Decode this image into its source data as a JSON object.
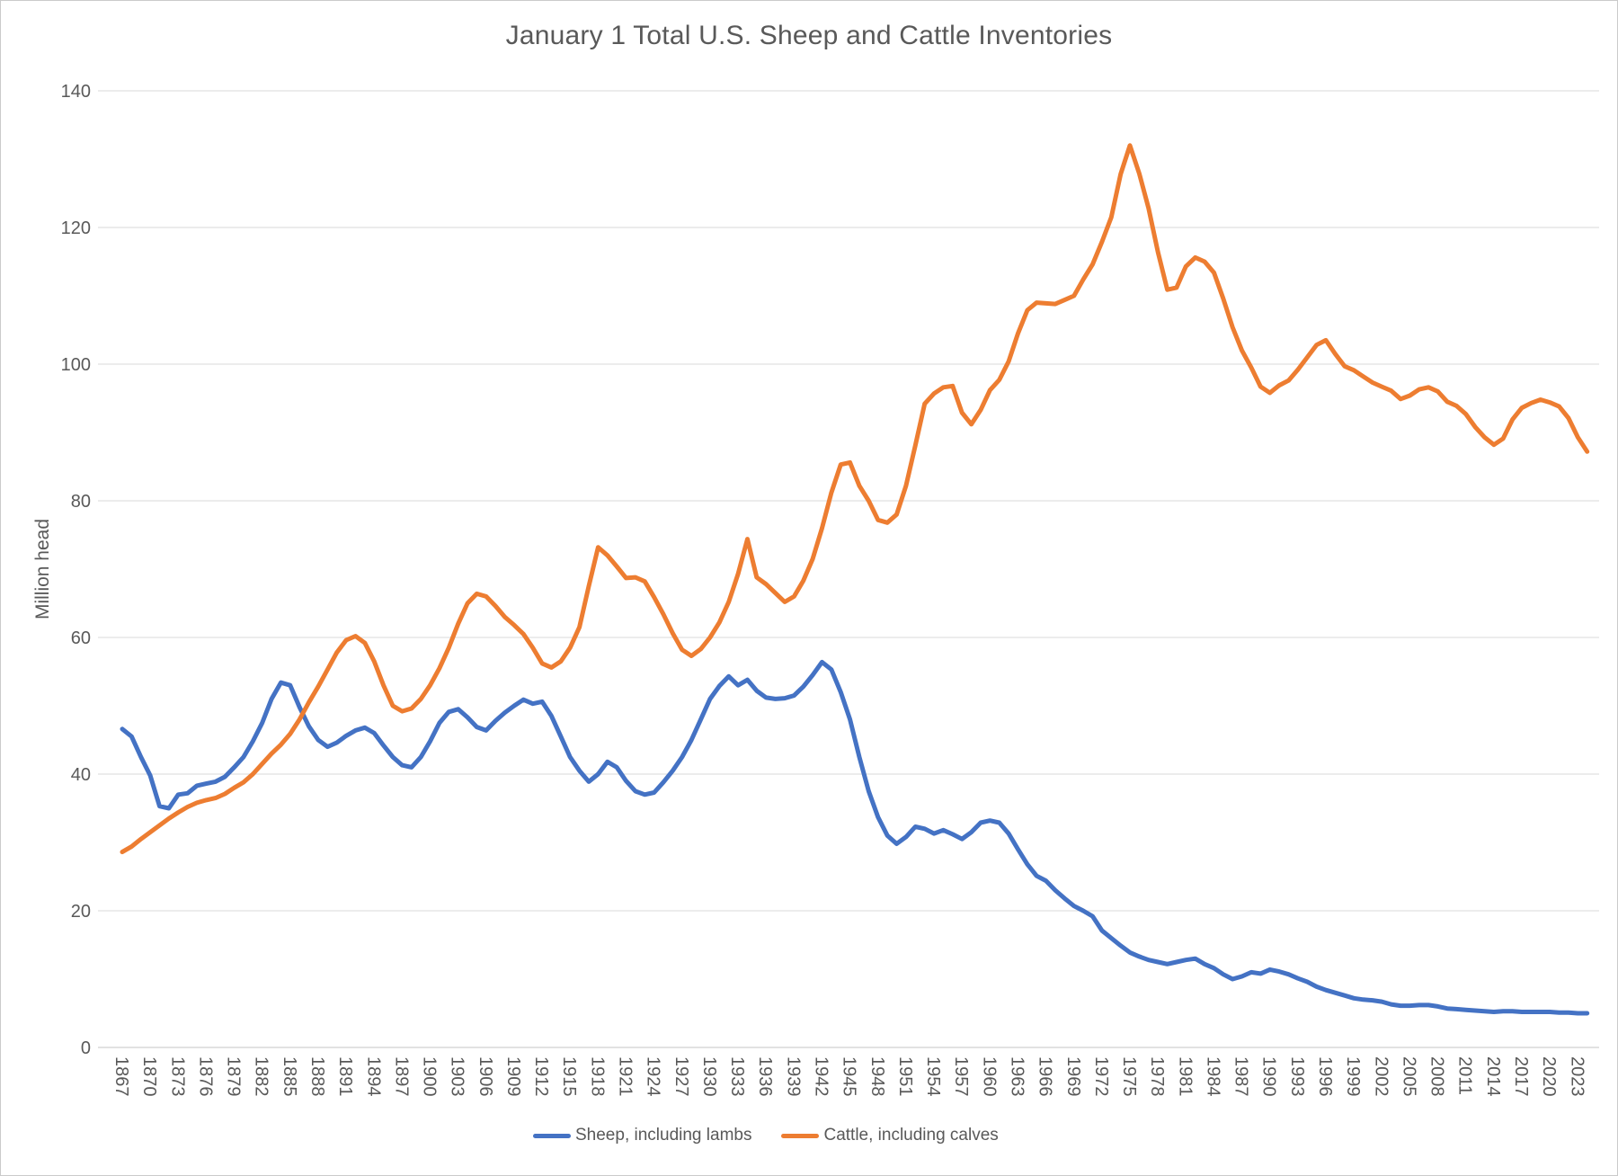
{
  "chart_data": {
    "type": "line",
    "title": "January 1 Total U.S. Sheep and Cattle Inventories",
    "xlabel": "",
    "ylabel": "Million head",
    "ylim": [
      0,
      140
    ],
    "y_tick_step": 20,
    "y_tick_labels": [
      "0",
      "20",
      "40",
      "60",
      "80",
      "100",
      "120",
      "140"
    ],
    "x_start_year": 1867,
    "x_end_year": 2024,
    "x_tick_labels": [
      "1867",
      "1870",
      "1873",
      "1876",
      "1879",
      "1882",
      "1885",
      "1888",
      "1891",
      "1894",
      "1897",
      "1900",
      "1903",
      "1906",
      "1909",
      "1912",
      "1915",
      "1918",
      "1921",
      "1924",
      "1927",
      "1930",
      "1933",
      "1936",
      "1939",
      "1942",
      "1945",
      "1948",
      "1951",
      "1954",
      "1957",
      "1960",
      "1963",
      "1966",
      "1969",
      "1972",
      "1975",
      "1978",
      "1981",
      "1984",
      "1987",
      "1990",
      "1993",
      "1996",
      "1999",
      "2002",
      "2005",
      "2008",
      "2011",
      "2014",
      "2017",
      "2020",
      "2023"
    ],
    "grid": "horizontal",
    "grid_color": "#D9D9D9",
    "axis_text_color": "#595959",
    "legend_position": "bottom",
    "series": [
      {
        "name": "Sheep, including lambs",
        "color": "#4472C4",
        "values": [
          46.6,
          45.5,
          42.5,
          39.8,
          35.3,
          35.0,
          37.0,
          37.2,
          38.3,
          38.6,
          38.9,
          39.6,
          41.0,
          42.5,
          44.8,
          47.5,
          51.0,
          53.4,
          53.0,
          49.8,
          47.0,
          45.0,
          44.0,
          44.6,
          45.6,
          46.4,
          46.8,
          46.0,
          44.2,
          42.5,
          41.3,
          41.0,
          42.5,
          44.8,
          47.5,
          49.1,
          49.5,
          48.3,
          46.9,
          46.4,
          47.8,
          49.0,
          50.0,
          50.9,
          50.3,
          50.6,
          48.5,
          45.5,
          42.5,
          40.5,
          38.9,
          40.0,
          41.8,
          41.0,
          39.0,
          37.5,
          37.0,
          37.3,
          38.8,
          40.5,
          42.5,
          45.0,
          48.0,
          51.0,
          52.9,
          54.3,
          53.0,
          53.8,
          52.2,
          51.2,
          51.0,
          51.1,
          51.5,
          52.8,
          54.5,
          56.4,
          55.3,
          52.0,
          48.0,
          42.5,
          37.5,
          33.7,
          31.0,
          29.8,
          30.8,
          32.3,
          32.0,
          31.3,
          31.8,
          31.2,
          30.5,
          31.5,
          32.9,
          33.2,
          32.9,
          31.3,
          29.0,
          26.8,
          25.1,
          24.4,
          23.0,
          21.8,
          20.7,
          20.0,
          19.2,
          17.1,
          16.0,
          14.9,
          13.9,
          13.3,
          12.8,
          12.5,
          12.2,
          12.5,
          12.8,
          13.0,
          12.2,
          11.6,
          10.7,
          10.0,
          10.4,
          11.0,
          10.8,
          11.4,
          11.1,
          10.7,
          10.1,
          9.6,
          8.9,
          8.4,
          8.0,
          7.6,
          7.2,
          7.0,
          6.9,
          6.7,
          6.3,
          6.1,
          6.1,
          6.2,
          6.2,
          6.0,
          5.7,
          5.6,
          5.5,
          5.4,
          5.3,
          5.2,
          5.3,
          5.3,
          5.2,
          5.2,
          5.2,
          5.2,
          5.1,
          5.1,
          5.0,
          5.0
        ]
      },
      {
        "name": "Cattle, including calves",
        "color": "#ED7D31",
        "values": [
          28.6,
          29.4,
          30.5,
          31.5,
          32.5,
          33.5,
          34.4,
          35.2,
          35.8,
          36.2,
          36.5,
          37.1,
          38.0,
          38.8,
          40.0,
          41.5,
          43.0,
          44.3,
          45.9,
          48.0,
          50.5,
          52.8,
          55.3,
          57.8,
          59.6,
          60.2,
          59.2,
          56.5,
          53.0,
          50.0,
          49.2,
          49.6,
          51.0,
          53.0,
          55.5,
          58.5,
          62.0,
          65.0,
          66.4,
          66.0,
          64.6,
          63.0,
          61.8,
          60.5,
          58.5,
          56.2,
          55.6,
          56.5,
          58.5,
          61.5,
          67.5,
          73.2,
          72.0,
          70.4,
          68.7,
          68.8,
          68.2,
          65.9,
          63.4,
          60.6,
          58.2,
          57.3,
          58.3,
          60.0,
          62.2,
          65.2,
          69.3,
          74.4,
          68.8,
          67.8,
          66.5,
          65.2,
          66.0,
          68.3,
          71.5,
          76.0,
          81.2,
          85.3,
          85.6,
          82.2,
          80.0,
          77.2,
          76.8,
          78.0,
          82.2,
          88.1,
          94.2,
          95.7,
          96.6,
          96.8,
          92.9,
          91.2,
          93.3,
          96.2,
          97.7,
          100.4,
          104.5,
          107.9,
          109.0,
          108.9,
          108.8,
          109.4,
          110.0,
          112.4,
          114.6,
          117.9,
          121.5,
          127.8,
          132.0,
          127.9,
          122.8,
          116.4,
          110.9,
          111.2,
          114.3,
          115.6,
          115.0,
          113.4,
          109.6,
          105.4,
          102.0,
          99.5,
          96.7,
          95.8,
          96.9,
          97.6,
          99.2,
          101.0,
          102.8,
          103.5,
          101.5,
          99.7,
          99.1,
          98.2,
          97.3,
          96.7,
          96.1,
          94.9,
          95.4,
          96.3,
          96.6,
          96.0,
          94.5,
          93.9,
          92.7,
          90.8,
          89.3,
          88.2,
          89.1,
          91.9,
          93.6,
          94.3,
          94.8,
          94.4,
          93.8,
          92.1,
          89.3,
          87.2
        ]
      }
    ]
  }
}
